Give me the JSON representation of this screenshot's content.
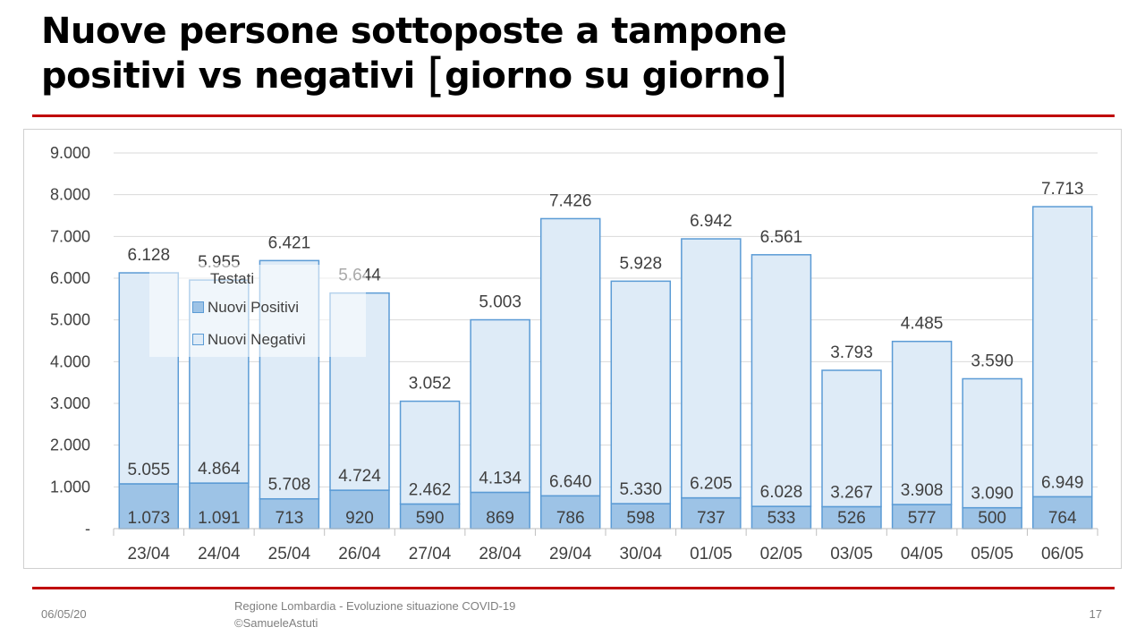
{
  "slide": {
    "title_line1": "Nuove persone sottoposte a tampone",
    "title_line2_text": "positivi vs negativi ",
    "title_bracket_open": "[",
    "title_bracket_text": "giorno su giorno",
    "title_bracket_close": "]",
    "footer_date": "06/05/20",
    "footer_source_line1": "Regione Lombardia - Evoluzione situazione COVID-19",
    "footer_source_line2": "©SamueleAstuti",
    "page_number": "17"
  },
  "colors": {
    "accent_rule": "#c00000",
    "positivi_fill": "#9dc3e6",
    "negativi_fill": "#deebf7",
    "bar_stroke": "#5b9bd5",
    "grid": "#d9d9d9",
    "label_text": "#404040"
  },
  "chart_data": {
    "type": "bar",
    "stacked": true,
    "categories": [
      "23/04",
      "24/04",
      "25/04",
      "26/04",
      "27/04",
      "28/04",
      "29/04",
      "30/04",
      "01/05",
      "02/05",
      "03/05",
      "04/05",
      "05/05",
      "06/05"
    ],
    "series": [
      {
        "name": "Nuovi Positivi",
        "values": [
          1073,
          1091,
          713,
          920,
          590,
          869,
          786,
          598,
          737,
          533,
          526,
          577,
          500,
          764
        ]
      },
      {
        "name": "Nuovi Negativi",
        "values": [
          5055,
          4864,
          5708,
          4724,
          2462,
          4134,
          6640,
          5330,
          6205,
          6028,
          3267,
          3908,
          3090,
          6949
        ]
      }
    ],
    "totals_name": "Testati",
    "totals": [
      6128,
      5955,
      6421,
      5644,
      3052,
      5003,
      7426,
      5928,
      6942,
      6561,
      3793,
      4485,
      3590,
      7713
    ],
    "ylim": [
      0,
      9000
    ],
    "yticks": [
      0,
      1000,
      2000,
      3000,
      4000,
      5000,
      6000,
      7000,
      8000,
      9000
    ],
    "ytick_labels": [
      "-",
      "1.000",
      "2.000",
      "3.000",
      "4.000",
      "5.000",
      "6.000",
      "7.000",
      "8.000",
      "9.000"
    ],
    "grid": true,
    "legend_position": "top-left",
    "number_format": "it-IT"
  }
}
